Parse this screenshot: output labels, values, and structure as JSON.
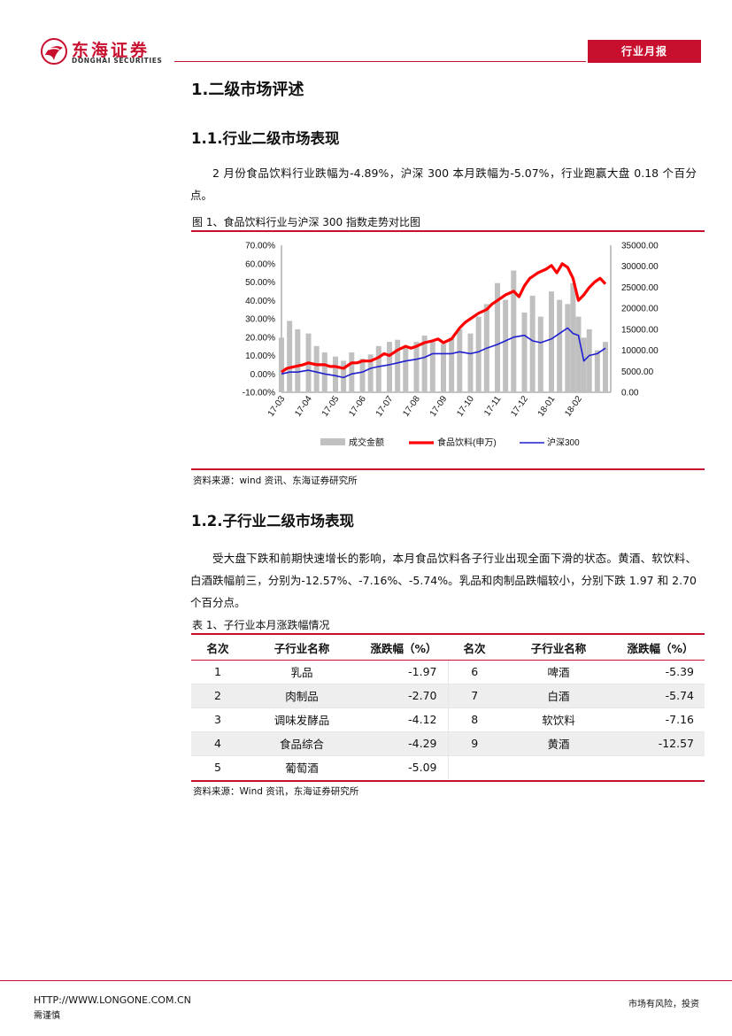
{
  "header": {
    "brand_cn": "东海证券",
    "brand_en": "DONGHAI SECURITIES",
    "report_type": "行业月报",
    "accent_color": "#c8102e"
  },
  "section1": {
    "title": "1.二级市场评述"
  },
  "section1_1": {
    "title": "1.1.行业二级市场表现",
    "paragraph": "2 月份食品饮料行业跌幅为-4.89%，沪深 300 本月跌幅为-5.07%，行业跑赢大盘 0.18 个百分点。"
  },
  "figure1": {
    "caption": "图 1、食品饮料行业与沪深 300 指数走势对比图",
    "source": "资料来源：wind 资讯、东海证券研究所"
  },
  "chart_data": {
    "type": "line",
    "title": "",
    "x_ticks": [
      "17-03",
      "17-04",
      "17-05",
      "17-06",
      "17-07",
      "17-08",
      "17-09",
      "17-10",
      "17-11",
      "17-12",
      "18-01",
      "18-02"
    ],
    "y_left_ticks": [
      "70.00%",
      "60.00%",
      "50.00%",
      "40.00%",
      "30.00%",
      "20.00%",
      "10.00%",
      "0.00%",
      "-10.00%"
    ],
    "y_right_ticks": [
      "35000.00",
      "30000.00",
      "25000.00",
      "20000.00",
      "15000.00",
      "10000.00",
      "5000.00",
      "0.00"
    ],
    "ylim_left": [
      -10,
      70
    ],
    "ylim_right": [
      0,
      35000
    ],
    "legend": [
      "成交金额",
      "食品饮料(申万)",
      "沪深300"
    ],
    "legend_position": "bottom",
    "colors": {
      "volume": "#c0c0c0",
      "food": "#ff0000",
      "hs300": "#1f1fd0"
    },
    "series": [
      {
        "name": "食品饮料(申万)",
        "axis": "left",
        "x": [
          0,
          0.2,
          0.5,
          0.8,
          1,
          1.3,
          1.6,
          1.8,
          2,
          2.3,
          2.6,
          2.8,
          3,
          3.3,
          3.6,
          3.8,
          4,
          4.3,
          4.6,
          4.8,
          5,
          5.3,
          5.6,
          5.8,
          6,
          6.3,
          6.6,
          6.8,
          7,
          7.3,
          7.6,
          7.8,
          8,
          8.3,
          8.6,
          8.8,
          9,
          9.2,
          9.5,
          9.8,
          10,
          10.2,
          10.4,
          10.6,
          10.8,
          11,
          11.2,
          11.4,
          11.6,
          11.8,
          12
        ],
        "values": [
          1,
          3,
          4,
          5,
          6,
          5,
          5,
          4,
          4,
          3,
          6,
          6,
          7,
          7,
          9,
          11,
          10,
          13,
          15,
          14,
          15,
          17,
          18,
          19,
          17,
          19,
          25,
          28,
          30,
          33,
          35,
          38,
          40,
          43,
          45,
          42,
          48,
          52,
          55,
          57,
          59,
          55,
          60,
          58,
          52,
          40,
          43,
          47,
          50,
          52,
          49
        ]
      },
      {
        "name": "沪深300",
        "axis": "left",
        "x": [
          0,
          0.3,
          0.6,
          1,
          1.3,
          1.6,
          2,
          2.3,
          2.6,
          3,
          3.3,
          3.6,
          4,
          4.3,
          4.6,
          5,
          5.3,
          5.6,
          6,
          6.3,
          6.6,
          7,
          7.3,
          7.6,
          8,
          8.3,
          8.6,
          9,
          9.3,
          9.6,
          10,
          10.3,
          10.6,
          10.8,
          11,
          11.2,
          11.4,
          11.7,
          12
        ],
        "values": [
          0,
          1,
          1,
          2,
          1,
          0,
          -1,
          -2,
          0,
          1,
          3,
          4,
          5,
          6,
          7,
          8,
          9,
          11,
          11,
          11,
          12,
          11,
          12,
          14,
          16,
          18,
          20,
          21,
          18,
          17,
          19,
          22,
          25,
          22,
          21,
          7,
          10,
          11,
          14
        ]
      },
      {
        "name": "成交金额",
        "axis": "right",
        "type": "bar",
        "x": [
          0,
          0.3,
          0.6,
          1,
          1.3,
          1.6,
          2,
          2.3,
          2.6,
          3,
          3.3,
          3.6,
          4,
          4.3,
          4.6,
          5,
          5.3,
          5.6,
          6,
          6.3,
          6.6,
          7,
          7.3,
          7.6,
          8,
          8.3,
          8.6,
          9,
          9.3,
          9.6,
          10,
          10.3,
          10.6,
          10.8,
          11,
          11.2,
          11.4,
          11.7,
          12
        ],
        "values": [
          13000,
          17000,
          15000,
          14000,
          11000,
          9500,
          8500,
          7500,
          9500,
          8000,
          9000,
          11000,
          12000,
          12500,
          11000,
          12000,
          13500,
          12000,
          11500,
          13000,
          15000,
          14000,
          18000,
          21000,
          26000,
          22000,
          29000,
          19000,
          23000,
          18000,
          24000,
          22000,
          21000,
          26000,
          18000,
          13000,
          15000,
          10000,
          12000
        ]
      }
    ]
  },
  "section1_2": {
    "title": "1.2.子行业二级市场表现",
    "paragraph": "受大盘下跌和前期快速增长的影响，本月食品饮料各子行业出现全面下滑的状态。黄酒、软饮料、白酒跌幅前三，分别为-12.57%、-7.16%、-5.74%。乳品和肉制品跌幅较小，分别下跌 1.97 和 2.70 个百分点。"
  },
  "table1": {
    "caption": "表 1、子行业本月涨跌幅情况",
    "headers": [
      "名次",
      "子行业名称",
      "涨跌幅（%）",
      "名次",
      "子行业名称",
      "涨跌幅（%）"
    ],
    "rows": [
      [
        "1",
        "乳品",
        "-1.97",
        "6",
        "啤酒",
        "-5.39"
      ],
      [
        "2",
        "肉制品",
        "-2.70",
        "7",
        "白酒",
        "-5.74"
      ],
      [
        "3",
        "调味发酵品",
        "-4.12",
        "8",
        "软饮料",
        "-7.16"
      ],
      [
        "4",
        "食品综合",
        "-4.29",
        "9",
        "黄酒",
        "-12.57"
      ],
      [
        "5",
        "葡萄酒",
        "-5.09",
        "",
        "",
        ""
      ]
    ],
    "source": "资料来源：Wind 资讯，东海证券研究所"
  },
  "footer": {
    "url": "HTTP://WWW.LONGONE.COM.CN",
    "note_right": "市场有风险，投资",
    "note_left": "需谨慎"
  }
}
